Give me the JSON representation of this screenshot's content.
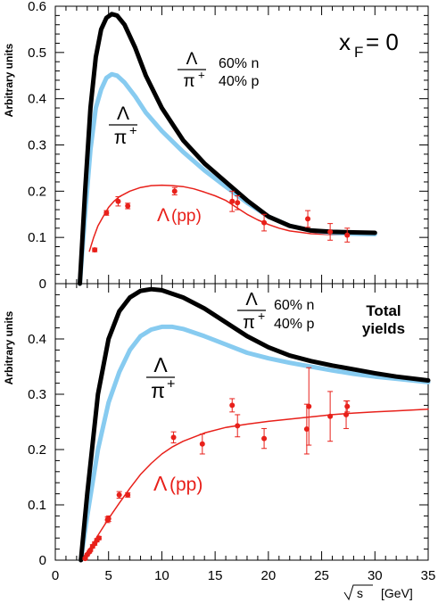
{
  "chart_data": [
    {
      "type": "line",
      "panel": "top",
      "ylabel": "Arbitrary units",
      "xlim": [
        0,
        35
      ],
      "ylim": [
        0,
        0.6
      ],
      "y_ticks": [
        0,
        0.1,
        0.2,
        0.3,
        0.4,
        0.5,
        0.6
      ],
      "y_tick_labels": [
        "0",
        "0.1",
        "0.2",
        "0.3",
        "0.4",
        "0.5",
        "0.6"
      ],
      "annotations": {
        "xf_main": "x",
        "xf_sub": "F",
        "xf_rest": "= 0",
        "mix_num": "Λ",
        "mix_den": "π",
        "mix_den_sup": "+",
        "mix_n": "60% n",
        "mix_p": "40% p",
        "ratio_num": "Λ",
        "ratio_den": "π",
        "ratio_den_sup": "+",
        "pp_label": "Λ",
        "pp_label_rest": "(pp)"
      },
      "series": [
        {
          "key": "mix",
          "color": "#000000",
          "points": [
            [
              2.3,
              0
            ],
            [
              2.8,
              0.2
            ],
            [
              3.3,
              0.38
            ],
            [
              3.8,
              0.49
            ],
            [
              4.3,
              0.55
            ],
            [
              4.8,
              0.575
            ],
            [
              5.3,
              0.583
            ],
            [
              5.8,
              0.58
            ],
            [
              6.5,
              0.56
            ],
            [
              7.5,
              0.51
            ],
            [
              8.5,
              0.45
            ],
            [
              10,
              0.38
            ],
            [
              12,
              0.31
            ],
            [
              14,
              0.26
            ],
            [
              16,
              0.22
            ],
            [
              18,
              0.18
            ],
            [
              20,
              0.145
            ],
            [
              22,
              0.125
            ],
            [
              24,
              0.115
            ],
            [
              26,
              0.112
            ],
            [
              28,
              0.111
            ],
            [
              30,
              0.11
            ]
          ]
        },
        {
          "key": "ratio",
          "color": "#87cbf0",
          "points": [
            [
              2.3,
              0
            ],
            [
              2.8,
              0.15
            ],
            [
              3.3,
              0.29
            ],
            [
              3.8,
              0.38
            ],
            [
              4.3,
              0.42
            ],
            [
              4.8,
              0.445
            ],
            [
              5.3,
              0.453
            ],
            [
              5.8,
              0.45
            ],
            [
              6.5,
              0.435
            ],
            [
              7.5,
              0.405
            ],
            [
              8.5,
              0.37
            ],
            [
              10,
              0.33
            ],
            [
              12,
              0.285
            ],
            [
              14,
              0.245
            ],
            [
              16,
              0.21
            ],
            [
              18,
              0.175
            ],
            [
              20,
              0.145
            ],
            [
              22,
              0.125
            ],
            [
              24,
              0.115
            ],
            [
              26,
              0.11
            ],
            [
              28,
              0.108
            ],
            [
              30,
              0.107
            ]
          ]
        },
        {
          "key": "pp",
          "color": "#e8201a",
          "points": [
            [
              3.2,
              0.07
            ],
            [
              3.6,
              0.1
            ],
            [
              4,
              0.125
            ],
            [
              4.5,
              0.145
            ],
            [
              5,
              0.165
            ],
            [
              5.5,
              0.178
            ],
            [
              6,
              0.188
            ],
            [
              7,
              0.2
            ],
            [
              8,
              0.208
            ],
            [
              9,
              0.212
            ],
            [
              10,
              0.213
            ],
            [
              11,
              0.212
            ],
            [
              12,
              0.21
            ],
            [
              13,
              0.205
            ],
            [
              14,
              0.198
            ],
            [
              15,
              0.19
            ],
            [
              16,
              0.18
            ],
            [
              17,
              0.165
            ],
            [
              18,
              0.15
            ],
            [
              19,
              0.138
            ],
            [
              20,
              0.128
            ],
            [
              21,
              0.12
            ],
            [
              22,
              0.114
            ],
            [
              24,
              0.108
            ],
            [
              26,
              0.106
            ],
            [
              28,
              0.106
            ]
          ]
        }
      ],
      "data_points": [
        {
          "x": 3.7,
          "y": 0.073,
          "err": 0.004
        },
        {
          "x": 4.8,
          "y": 0.153,
          "err": 0.005
        },
        {
          "x": 5.9,
          "y": 0.178,
          "err": 0.01
        },
        {
          "x": 6.8,
          "y": 0.168,
          "err": 0.006
        },
        {
          "x": 11.2,
          "y": 0.2,
          "err": 0.008
        },
        {
          "x": 16.6,
          "y": 0.178,
          "err": 0.022
        },
        {
          "x": 17.1,
          "y": 0.175,
          "err": 0.015
        },
        {
          "x": 19.6,
          "y": 0.132,
          "err": 0.018
        },
        {
          "x": 23.7,
          "y": 0.14,
          "err": 0.018
        },
        {
          "x": 25.8,
          "y": 0.112,
          "err": 0.018
        },
        {
          "x": 27.4,
          "y": 0.105,
          "err": 0.015
        }
      ]
    },
    {
      "type": "line",
      "panel": "bottom",
      "ylabel": "Arbitrary units",
      "xlabel": "s",
      "xlabel_unit": "[GeV]",
      "xlim": [
        0,
        35
      ],
      "ylim": [
        0,
        0.5
      ],
      "x_ticks": [
        0,
        5,
        10,
        15,
        20,
        25,
        30,
        35
      ],
      "x_tick_labels": [
        "0",
        "5",
        "10",
        "15",
        "20",
        "25",
        "30",
        "35"
      ],
      "y_ticks": [
        0,
        0.1,
        0.2,
        0.3,
        0.4
      ],
      "y_tick_labels": [
        "0",
        "0.1",
        "0.2",
        "0.3",
        "0.4"
      ],
      "annotations": {
        "mix_num": "Λ",
        "mix_den": "π",
        "mix_den_sup": "+",
        "mix_n": "60% n",
        "mix_p": "40% p",
        "total_line1": "Total",
        "total_line2": "yields",
        "ratio_num": "Λ",
        "ratio_den": "π",
        "ratio_den_sup": "+",
        "pp_label": "Λ",
        "pp_label_rest": "(pp)"
      },
      "series": [
        {
          "key": "mix",
          "color": "#000000",
          "points": [
            [
              2.4,
              0
            ],
            [
              3,
              0.12
            ],
            [
              4,
              0.3
            ],
            [
              5,
              0.4
            ],
            [
              6,
              0.45
            ],
            [
              7,
              0.475
            ],
            [
              8,
              0.487
            ],
            [
              9,
              0.49
            ],
            [
              10,
              0.488
            ],
            [
              12,
              0.475
            ],
            [
              14,
              0.455
            ],
            [
              16,
              0.43
            ],
            [
              18,
              0.405
            ],
            [
              20,
              0.385
            ],
            [
              22,
              0.37
            ],
            [
              24,
              0.36
            ],
            [
              26,
              0.352
            ],
            [
              28,
              0.345
            ],
            [
              30,
              0.338
            ],
            [
              32,
              0.332
            ],
            [
              35,
              0.325
            ]
          ]
        },
        {
          "key": "ratio",
          "color": "#87cbf0",
          "points": [
            [
              2.4,
              0
            ],
            [
              3,
              0.08
            ],
            [
              4,
              0.2
            ],
            [
              5,
              0.285
            ],
            [
              6,
              0.34
            ],
            [
              7,
              0.38
            ],
            [
              8,
              0.405
            ],
            [
              9,
              0.417
            ],
            [
              10,
              0.422
            ],
            [
              11,
              0.422
            ],
            [
              12,
              0.418
            ],
            [
              14,
              0.405
            ],
            [
              16,
              0.39
            ],
            [
              18,
              0.375
            ],
            [
              20,
              0.365
            ],
            [
              22,
              0.357
            ],
            [
              24,
              0.35
            ],
            [
              26,
              0.343
            ],
            [
              28,
              0.337
            ],
            [
              30,
              0.332
            ],
            [
              32,
              0.328
            ],
            [
              35,
              0.322
            ]
          ]
        },
        {
          "key": "pp",
          "color": "#e8201a",
          "points": [
            [
              2.4,
              0
            ],
            [
              3,
              0.015
            ],
            [
              3.5,
              0.028
            ],
            [
              4,
              0.045
            ],
            [
              5,
              0.075
            ],
            [
              6,
              0.103
            ],
            [
              7,
              0.13
            ],
            [
              8,
              0.155
            ],
            [
              9,
              0.175
            ],
            [
              10,
              0.192
            ],
            [
              11,
              0.205
            ],
            [
              12,
              0.215
            ],
            [
              14,
              0.23
            ],
            [
              16,
              0.24
            ],
            [
              18,
              0.246
            ],
            [
              20,
              0.251
            ],
            [
              22,
              0.255
            ],
            [
              24,
              0.259
            ],
            [
              26,
              0.263
            ],
            [
              28,
              0.266
            ],
            [
              30,
              0.268
            ],
            [
              32,
              0.27
            ],
            [
              35,
              0.273
            ]
          ]
        }
      ],
      "data_points": [
        {
          "x": 2.8,
          "y": 0.003,
          "err": 0.002
        },
        {
          "x": 3.0,
          "y": 0.01,
          "err": 0.002
        },
        {
          "x": 3.2,
          "y": 0.015,
          "err": 0.002
        },
        {
          "x": 3.3,
          "y": 0.018,
          "err": 0.002
        },
        {
          "x": 3.5,
          "y": 0.025,
          "err": 0.003
        },
        {
          "x": 3.7,
          "y": 0.03,
          "err": 0.003
        },
        {
          "x": 3.9,
          "y": 0.036,
          "err": 0.003
        },
        {
          "x": 4.1,
          "y": 0.04,
          "err": 0.003
        },
        {
          "x": 4.9,
          "y": 0.073,
          "err": 0.005
        },
        {
          "x": 5.0,
          "y": 0.075,
          "err": 0.005
        },
        {
          "x": 6.0,
          "y": 0.118,
          "err": 0.006
        },
        {
          "x": 6.8,
          "y": 0.118,
          "err": 0.004
        },
        {
          "x": 11.1,
          "y": 0.222,
          "err": 0.01
        },
        {
          "x": 13.8,
          "y": 0.21,
          "err": 0.018
        },
        {
          "x": 16.6,
          "y": 0.28,
          "err": 0.012
        },
        {
          "x": 17.1,
          "y": 0.243,
          "err": 0.02
        },
        {
          "x": 19.6,
          "y": 0.22,
          "err": 0.018
        },
        {
          "x": 23.6,
          "y": 0.237,
          "err": 0.045
        },
        {
          "x": 23.8,
          "y": 0.278,
          "err": 0.07
        },
        {
          "x": 25.8,
          "y": 0.26,
          "err": 0.045
        },
        {
          "x": 27.3,
          "y": 0.263,
          "err": 0.025
        },
        {
          "x": 27.4,
          "y": 0.278,
          "err": 0.01
        }
      ]
    }
  ]
}
